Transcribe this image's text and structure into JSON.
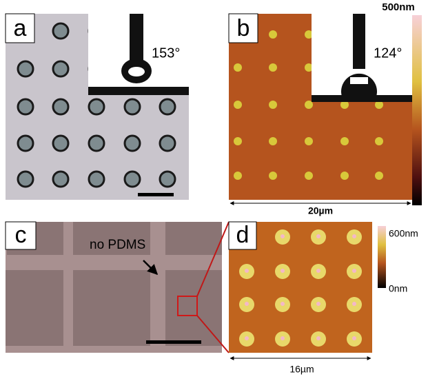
{
  "panels": [
    {
      "label": "a",
      "angle": "153°"
    },
    {
      "label": "b",
      "angle": "124°",
      "colorbar_max": "500nm",
      "scale": "20µm"
    },
    {
      "label": "c",
      "annotation": "no PDMS"
    },
    {
      "label": "d",
      "colorbar_max": "600nm",
      "colorbar_min": "0nm",
      "scale": "16µm"
    }
  ]
}
